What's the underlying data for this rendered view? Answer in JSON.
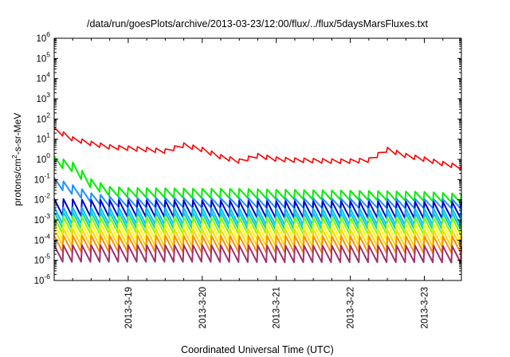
{
  "chart_data": {
    "type": "line",
    "title": "/data/run/goesPlots/archive/2013-03-23/12:00/flux/../flux/5daysMarsFluxes.txt",
    "xlabel": "Coordinated Universal Time (UTC)",
    "ylabel_parts": {
      "pre": "protons/cm",
      "sup": "2",
      "post": "-s-sr-MeV"
    },
    "yscale": "log",
    "ylim_exponents": [
      -6,
      6
    ],
    "y_tick_base": "10",
    "y_tick_exponents": [
      "-6",
      "-5",
      "-4",
      "-3",
      "-2",
      "-1",
      "0",
      "1",
      "2",
      "3",
      "4",
      "5",
      "6"
    ],
    "x_range_days": [
      2013.0318,
      2013.0323
    ],
    "x_ticks": [
      "2013-3-19",
      "2013-3-20",
      "2013-3-21",
      "2013-3-22",
      "2013-3-23"
    ],
    "grid": false,
    "legend": "none",
    "series": [
      {
        "color": "#ff0000",
        "points": [
          [
            "2013-03-18 00:00",
            30
          ],
          [
            "2013-03-18 06:00",
            10
          ],
          [
            "2013-03-18 12:00",
            6
          ],
          [
            "2013-03-18 18:00",
            4
          ],
          [
            "2013-03-19 00:00",
            3.5
          ],
          [
            "2013-03-19 06:00",
            3
          ],
          [
            "2013-03-19 12:00",
            2.5
          ],
          [
            "2013-03-19 18:00",
            5
          ],
          [
            "2013-03-20 00:00",
            3
          ],
          [
            "2013-03-20 06:00",
            1.3
          ],
          [
            "2013-03-20 12:00",
            0.8
          ],
          [
            "2013-03-20 18:00",
            1.5
          ],
          [
            "2013-03-21 00:00",
            1
          ],
          [
            "2013-03-21 06:00",
            0.9
          ],
          [
            "2013-03-21 12:00",
            0.85
          ],
          [
            "2013-03-21 18:00",
            0.8
          ],
          [
            "2013-03-22 00:00",
            0.8
          ],
          [
            "2013-03-22 06:00",
            0.9
          ],
          [
            "2013-03-22 12:00",
            3
          ],
          [
            "2013-03-22 18:00",
            1.5
          ],
          [
            "2013-03-23 00:00",
            1
          ],
          [
            "2013-03-23 06:00",
            0.6
          ],
          [
            "2013-03-23 12:00",
            0.4
          ]
        ]
      },
      {
        "color": "#00ee00",
        "points": [
          [
            "2013-03-18 00:00",
            0.8
          ],
          [
            "2013-03-18 06:00",
            0.4
          ],
          [
            "2013-03-18 12:00",
            0.06
          ],
          [
            "2013-03-18 18:00",
            0.025
          ],
          [
            "2013-03-19 00:00",
            0.022
          ],
          [
            "2013-03-19 12:00",
            0.021
          ],
          [
            "2013-03-20 00:00",
            0.02
          ],
          [
            "2013-03-20 12:00",
            0.02
          ],
          [
            "2013-03-21 00:00",
            0.018
          ],
          [
            "2013-03-21 12:00",
            0.017
          ],
          [
            "2013-03-22 00:00",
            0.016
          ],
          [
            "2013-03-22 12:00",
            0.015
          ],
          [
            "2013-03-23 00:00",
            0.014
          ],
          [
            "2013-03-23 12:00",
            0.011
          ]
        ]
      },
      {
        "color": "#1e90ff",
        "points": [
          [
            "2013-03-18 00:00",
            0.07
          ],
          [
            "2013-03-18 06:00",
            0.03
          ],
          [
            "2013-03-18 12:00",
            0.012
          ],
          [
            "2013-03-18 18:00",
            0.008
          ],
          [
            "2013-03-19 00:00",
            0.007
          ],
          [
            "2013-03-19 12:00",
            0.007
          ],
          [
            "2013-03-20 00:00",
            0.0068
          ],
          [
            "2013-03-20 12:00",
            0.0068
          ],
          [
            "2013-03-21 00:00",
            0.0066
          ],
          [
            "2013-03-21 12:00",
            0.0065
          ],
          [
            "2013-03-22 00:00",
            0.0064
          ],
          [
            "2013-03-22 12:00",
            0.0063
          ],
          [
            "2013-03-23 00:00",
            0.0062
          ],
          [
            "2013-03-23 12:00",
            0.006
          ]
        ]
      },
      {
        "color": "#0000cd",
        "points": [
          [
            "2013-03-18 00:00",
            0.004
          ],
          [
            "2013-03-18 12:00",
            0.0035
          ],
          [
            "2013-03-19 00:00",
            0.0033
          ],
          [
            "2013-03-20 00:00",
            0.0032
          ],
          [
            "2013-03-21 00:00",
            0.003
          ],
          [
            "2013-03-22 00:00",
            0.003
          ],
          [
            "2013-03-23 00:00",
            0.0028
          ],
          [
            "2013-03-23 12:00",
            0.0028
          ]
        ]
      },
      {
        "color": "#00bfff",
        "points": [
          [
            "2013-03-18 00:00",
            0.0015
          ],
          [
            "2013-03-19 00:00",
            0.0014
          ],
          [
            "2013-03-20 00:00",
            0.0014
          ],
          [
            "2013-03-21 00:00",
            0.0013
          ],
          [
            "2013-03-22 00:00",
            0.0013
          ],
          [
            "2013-03-23 00:00",
            0.0013
          ],
          [
            "2013-03-23 12:00",
            0.0013
          ]
        ]
      },
      {
        "color": "#00ced1",
        "points": [
          [
            "2013-03-18 00:00",
            0.0009
          ],
          [
            "2013-03-19 00:00",
            0.00085
          ],
          [
            "2013-03-20 00:00",
            0.00085
          ],
          [
            "2013-03-21 00:00",
            0.0008
          ],
          [
            "2013-03-22 00:00",
            0.0008
          ],
          [
            "2013-03-23 00:00",
            0.0008
          ],
          [
            "2013-03-23 12:00",
            0.0008
          ]
        ]
      },
      {
        "color": "#7cfc00",
        "points": [
          [
            "2013-03-18 00:00",
            0.0005
          ],
          [
            "2013-03-19 00:00",
            0.0005
          ],
          [
            "2013-03-20 00:00",
            0.00048
          ],
          [
            "2013-03-21 00:00",
            0.00048
          ],
          [
            "2013-03-22 00:00",
            0.00047
          ],
          [
            "2013-03-23 00:00",
            0.00046
          ],
          [
            "2013-03-23 12:00",
            0.00046
          ]
        ]
      },
      {
        "color": "#ffff00",
        "points": [
          [
            "2013-03-18 00:00",
            0.00025
          ],
          [
            "2013-03-19 00:00",
            0.00024
          ],
          [
            "2013-03-20 00:00",
            0.00024
          ],
          [
            "2013-03-21 00:00",
            0.00023
          ],
          [
            "2013-03-22 00:00",
            0.00023
          ],
          [
            "2013-03-23 00:00",
            0.00023
          ],
          [
            "2013-03-23 12:00",
            0.00022
          ]
        ]
      },
      {
        "color": "#ffd700",
        "points": [
          [
            "2013-03-18 00:00",
            0.00013
          ],
          [
            "2013-03-19 00:00",
            0.00012
          ],
          [
            "2013-03-20 00:00",
            0.00012
          ],
          [
            "2013-03-21 00:00",
            0.00012
          ],
          [
            "2013-03-22 00:00",
            0.00012
          ],
          [
            "2013-03-23 00:00",
            0.00011
          ],
          [
            "2013-03-23 12:00",
            0.00011
          ]
        ]
      },
      {
        "color": "#ff8c00",
        "points": [
          [
            "2013-03-18 00:00",
            6e-05
          ],
          [
            "2013-03-19 00:00",
            6e-05
          ],
          [
            "2013-03-20 00:00",
            5.8e-05
          ],
          [
            "2013-03-21 00:00",
            5.8e-05
          ],
          [
            "2013-03-22 00:00",
            5.6e-05
          ],
          [
            "2013-03-23 00:00",
            5.5e-05
          ],
          [
            "2013-03-23 12:00",
            5.5e-05
          ]
        ]
      },
      {
        "color": "#a0306e",
        "points": [
          [
            "2013-03-18 00:00",
            2e-05
          ],
          [
            "2013-03-19 00:00",
            2e-05
          ],
          [
            "2013-03-20 00:00",
            2e-05
          ],
          [
            "2013-03-21 00:00",
            1.9e-05
          ],
          [
            "2013-03-22 00:00",
            1.9e-05
          ],
          [
            "2013-03-23 00:00",
            1.9e-05
          ],
          [
            "2013-03-23 12:00",
            1.8e-05
          ]
        ]
      }
    ]
  }
}
